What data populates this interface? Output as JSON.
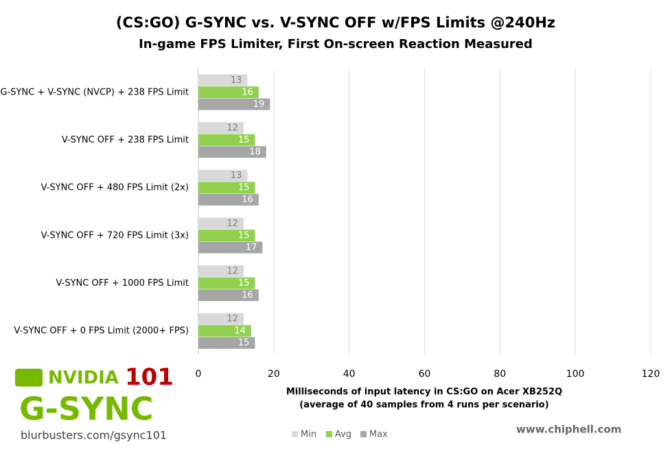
{
  "chart_data": {
    "type": "hbar",
    "title": "(CS:GO) G-SYNC vs. V-SYNC OFF w/FPS Limits @240Hz",
    "subtitle": "In-game FPS Limiter, First On-screen Reaction Measured",
    "categories": [
      "G-SYNC + V-SYNC (NVCP) + 238 FPS Limit",
      "V-SYNC OFF + 238 FPS Limit",
      "V-SYNC OFF + 480 FPS Limit (2x)",
      "V-SYNC OFF + 720 FPS Limit (3x)",
      "V-SYNC OFF + 1000 FPS Limit",
      "V-SYNC OFF + 0 FPS Limit (2000+ FPS)"
    ],
    "series": [
      {
        "name": "Min",
        "color": "#d9d9d9",
        "label_color": "#7f7f7f",
        "values": [
          13,
          12,
          13,
          12,
          12,
          12
        ]
      },
      {
        "name": "Avg",
        "color": "#92d050",
        "label_color": "#ffffff",
        "values": [
          16,
          15,
          15,
          15,
          15,
          14
        ]
      },
      {
        "name": "Max",
        "color": "#a6a6a6",
        "label_color": "#ffffff",
        "values": [
          19,
          18,
          16,
          17,
          16,
          15
        ]
      }
    ],
    "x_label": [
      "Milliseconds of input latency in CS:GO on Acer XB252Q",
      "(average of 40 samples from 4 runs per scenario)"
    ],
    "xlim": [
      0,
      120
    ],
    "xticks": [
      0,
      20,
      40,
      60,
      80,
      100,
      120
    ],
    "grid": true,
    "legend": "bottom"
  },
  "branding": {
    "nvidia": "NVIDIA",
    "number": "101",
    "gsync": "G-SYNC",
    "url": "blurbusters.com/gsync101",
    "watermark": "www.chiphell.com"
  }
}
